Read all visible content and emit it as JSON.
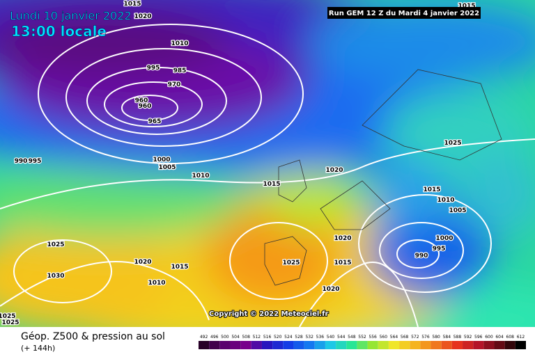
{
  "header": {
    "date": "Lundi 10 janvier 2022",
    "time": "13:00 locale",
    "run": "Run GEM 12 Z du Mardi 4 janvier 2022"
  },
  "isobar_labels": [
    "1015",
    "1020",
    "1010",
    "995",
    "985",
    "970",
    "960",
    "960",
    "965",
    "1000",
    "1005",
    "1010",
    "990",
    "995",
    "1015",
    "1020",
    "1025",
    "1015",
    "1010",
    "1005",
    "1000",
    "995",
    "990",
    "1020",
    "1015",
    "1020",
    "1025",
    "1025",
    "1030",
    "1020",
    "1015",
    "1010",
    "1025",
    "1025",
    "1015"
  ],
  "copyright": "Copyright © 2022 Meteociel.fr",
  "footer": {
    "title": "Géop. Z500 & pression au sol",
    "subtitle": "(+ 144h)"
  },
  "legend_scale": [
    492,
    496,
    500,
    504,
    508,
    512,
    516,
    520,
    524,
    528,
    532,
    536,
    540,
    544,
    548,
    552,
    556,
    560,
    564,
    568,
    572,
    576,
    580,
    584,
    588,
    592,
    596,
    600,
    604,
    608,
    612
  ]
}
